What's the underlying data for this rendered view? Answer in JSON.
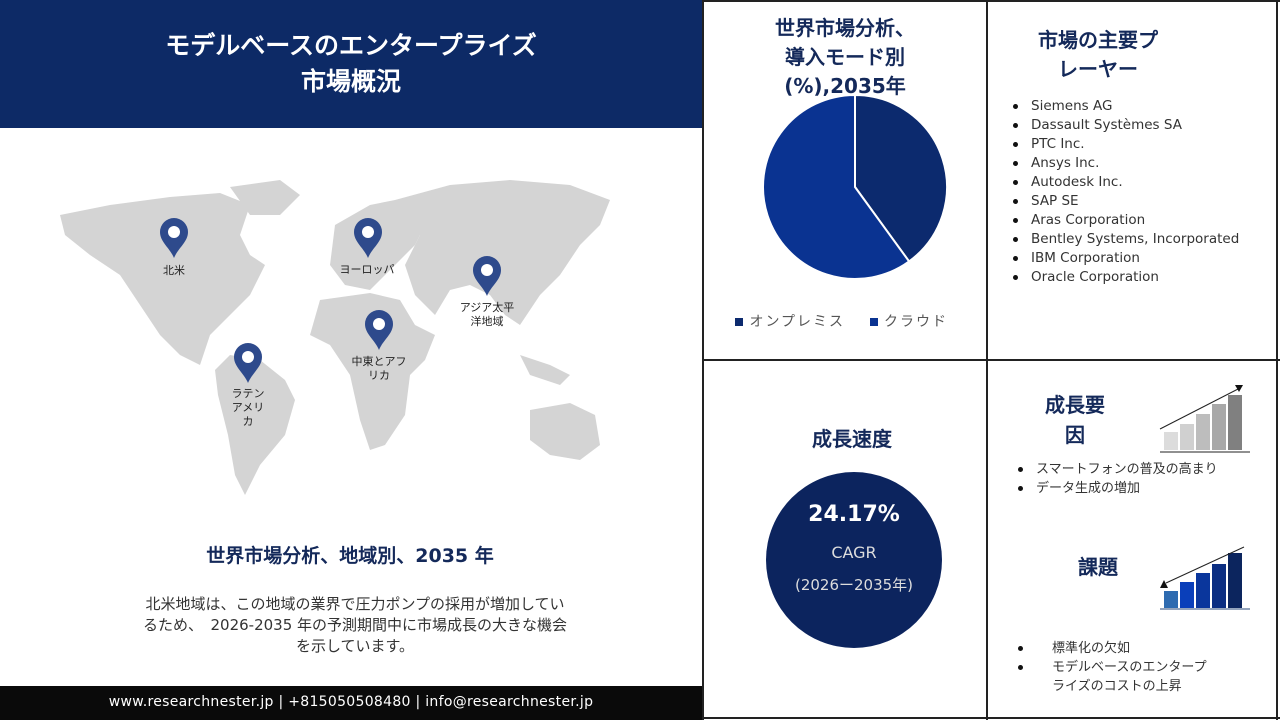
{
  "header": {
    "title_line1": "モデルベースのエンタープライズ",
    "title_line2": "市場概況"
  },
  "map": {
    "regions": [
      "北米",
      "ヨーロッパ",
      "アジア太平洋地域",
      "中東とアフリカ",
      "ラテンアメリカ"
    ],
    "region_labels": {
      "na": "北米",
      "eu": "ヨーロッパ",
      "ap1": "アジア太平",
      "ap2": "洋地域",
      "me1": "中東とアフ",
      "me2": "リカ",
      "la1": "ラテン",
      "la2": "アメリ",
      "la3": "カ"
    },
    "title": "世界市場分析、地域別、2035 年",
    "desc_line1": "北米地域は、この地域の業界で圧力ポンプの採用が増加してい",
    "desc_line2": "るため、　2026-2035 年の予測期間中に市場成長の大きな機会",
    "desc_line3": "を示しています。"
  },
  "footer": {
    "text": "www.researchnester.jp | +815050508480 | info@researchnester.jp"
  },
  "chart_data": {
    "type": "pie",
    "title_line1": "世界市場分析、",
    "title_line2": "導入モード別",
    "title_line3": "(%),2035年",
    "categories": [
      "オンプレミス",
      "クラウド"
    ],
    "values": [
      40,
      60
    ],
    "colors": [
      "#0c2a6e",
      "#0a3391"
    ],
    "legend": "bottom"
  },
  "players": {
    "title_line1": "市場の主要プ",
    "title_line2": "レーヤー",
    "items": [
      "Siemens AG",
      "Dassault Systèmes SA",
      "PTC Inc.",
      "Ansys Inc.",
      "Autodesk Inc.",
      "SAP SE",
      "Aras Corporation",
      "Bentley Systems, Incorporated",
      "IBM Corporation",
      "Oracle Corporation"
    ]
  },
  "growth": {
    "title": "成長速度",
    "value": "24.17%",
    "label": "CAGR",
    "period": "(2026ー2035年)"
  },
  "drivers": {
    "title_line1": "成長要",
    "title_line2": "因",
    "items": [
      "スマートフォンの普及の高まり",
      "データ生成の増加"
    ]
  },
  "challenges": {
    "title": "課題",
    "items": [
      "標準化の欠如",
      "モデルベースのエンタープ",
      "ライズのコストの上昇"
    ]
  },
  "colors": {
    "navy": "#0d2a66",
    "circle": "#0c245e"
  }
}
